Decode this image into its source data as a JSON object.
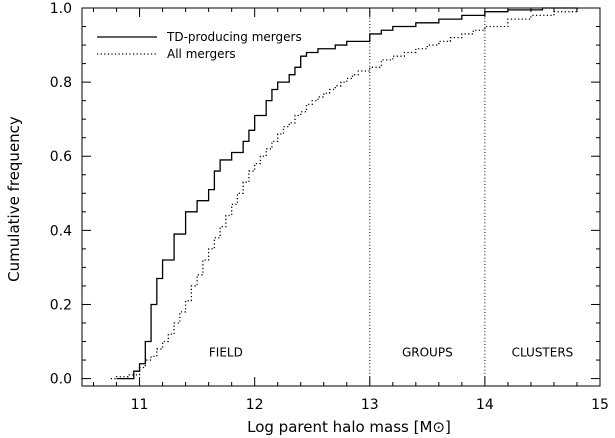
{
  "chart_data": {
    "type": "line",
    "xlabel": "Log parent halo mass [M⊙]",
    "ylabel": "Cumulative frequency",
    "xlim": [
      10.5,
      15.0
    ],
    "ylim": [
      -0.02,
      1.0
    ],
    "xticks": [
      11,
      12,
      13,
      14,
      15
    ],
    "xtick_labels": [
      "11",
      "12",
      "13",
      "14",
      "15"
    ],
    "yticks": [
      0.0,
      0.2,
      0.4,
      0.6,
      0.8,
      1.0
    ],
    "ytick_labels": [
      "0.0",
      "0.2",
      "0.4",
      "0.6",
      "0.8",
      "1.0"
    ],
    "legend_position": "top-left",
    "grid": false,
    "region_lines": [
      13.0,
      14.0
    ],
    "region_labels": [
      {
        "text": "FIELD",
        "x": 11.75,
        "y": 0.07
      },
      {
        "text": "GROUPS",
        "x": 13.5,
        "y": 0.07
      },
      {
        "text": "CLUSTERS",
        "x": 14.5,
        "y": 0.07
      }
    ],
    "series": [
      {
        "name": "TD-producing mergers",
        "style": "solid",
        "step": "post",
        "x": [
          10.8,
          10.95,
          11.0,
          11.05,
          11.1,
          11.15,
          11.2,
          11.3,
          11.4,
          11.5,
          11.6,
          11.65,
          11.7,
          11.8,
          11.9,
          11.95,
          12.0,
          12.1,
          12.15,
          12.2,
          12.3,
          12.35,
          12.4,
          12.45,
          12.5,
          12.55,
          12.6,
          12.7,
          12.75,
          12.8,
          12.9,
          13.0,
          13.1,
          13.2,
          13.4,
          13.6,
          13.8,
          14.0,
          14.2,
          14.5,
          14.8
        ],
        "y": [
          0.0,
          0.02,
          0.04,
          0.1,
          0.2,
          0.27,
          0.32,
          0.39,
          0.45,
          0.48,
          0.51,
          0.56,
          0.59,
          0.61,
          0.64,
          0.67,
          0.71,
          0.75,
          0.78,
          0.8,
          0.82,
          0.84,
          0.87,
          0.88,
          0.88,
          0.89,
          0.89,
          0.9,
          0.9,
          0.91,
          0.91,
          0.93,
          0.94,
          0.95,
          0.96,
          0.97,
          0.98,
          0.99,
          0.995,
          1.0,
          1.0
        ]
      },
      {
        "name": "All mergers",
        "style": "dotted",
        "step": "post",
        "x": [
          10.75,
          10.8,
          10.9,
          11.0,
          11.05,
          11.1,
          11.15,
          11.2,
          11.25,
          11.3,
          11.35,
          11.4,
          11.45,
          11.5,
          11.55,
          11.6,
          11.65,
          11.7,
          11.75,
          11.8,
          11.85,
          11.9,
          11.95,
          12.0,
          12.05,
          12.1,
          12.15,
          12.2,
          12.25,
          12.3,
          12.35,
          12.4,
          12.45,
          12.5,
          12.55,
          12.6,
          12.65,
          12.7,
          12.75,
          12.8,
          12.85,
          12.9,
          13.0,
          13.1,
          13.2,
          13.3,
          13.4,
          13.5,
          13.6,
          13.7,
          13.8,
          13.9,
          14.0,
          14.2,
          14.4,
          14.6,
          14.8
        ],
        "y": [
          0.0,
          0.005,
          0.01,
          0.03,
          0.05,
          0.06,
          0.08,
          0.1,
          0.12,
          0.15,
          0.18,
          0.21,
          0.25,
          0.28,
          0.32,
          0.35,
          0.38,
          0.41,
          0.44,
          0.47,
          0.5,
          0.53,
          0.56,
          0.58,
          0.6,
          0.62,
          0.64,
          0.66,
          0.68,
          0.69,
          0.71,
          0.72,
          0.74,
          0.75,
          0.76,
          0.77,
          0.78,
          0.79,
          0.8,
          0.81,
          0.82,
          0.83,
          0.84,
          0.86,
          0.87,
          0.88,
          0.89,
          0.9,
          0.91,
          0.92,
          0.93,
          0.94,
          0.95,
          0.97,
          0.98,
          0.99,
          1.0
        ]
      }
    ]
  }
}
